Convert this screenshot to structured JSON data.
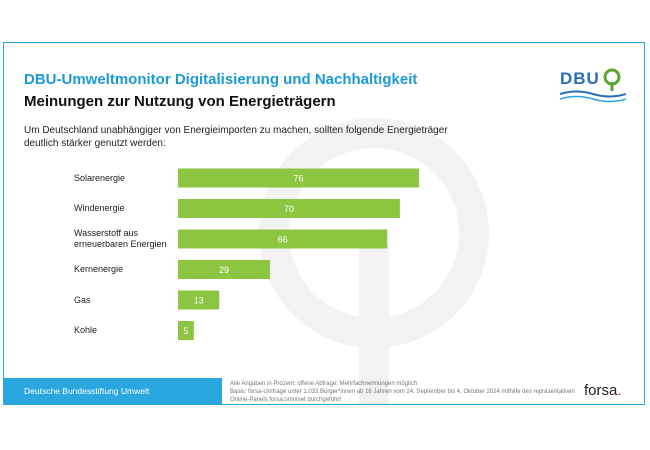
{
  "header": {
    "title": "DBU-Umweltmonitor Digitalisierung und Nachhaltigkeit",
    "subtitle": "Meinungen zur Nutzung von Energieträgern",
    "question": "Um Deutschland unabhängiger von Energieimporten zu machen, sollten folgende Energieträger deutlich stärker genutzt werden:"
  },
  "logo": {
    "text": "DBU",
    "name": "dbu-logo"
  },
  "footer": {
    "organization": "Deutsche Bundesstiftung Umwelt",
    "notes": [
      "Alle Angaben in Prozent; offene Abfrage; Mehrfachnennungen möglich",
      "Basis: forsa-Umfrage unter 1.033 Bürger*innen ab 18 Jahren vom 24. September bis 4. Oktober 2024 mithilfe des repräsentativen",
      "Online-Panels forsa.omninet durchgeführt"
    ],
    "brand": "forsa",
    "brand_dot": "."
  },
  "colors": {
    "accent": "#1b9ad6",
    "bar": "#8cc640",
    "frame": "#2aa7df"
  },
  "chart_data": {
    "type": "bar",
    "orientation": "horizontal",
    "unit": "Prozent",
    "xlim": [
      0,
      100
    ],
    "categories": [
      "Solarenergie",
      "Windenergie",
      "Wasserstoff aus erneuerbaren Energien",
      "Kernenergie",
      "Gas",
      "Kohle"
    ],
    "category_lines": [
      [
        "Solarenergie"
      ],
      [
        "Windenergie"
      ],
      [
        "Wasserstoff aus",
        "erneuerbaren Energien"
      ],
      [
        "Kernenergie"
      ],
      [
        "Gas"
      ],
      [
        "Kohle"
      ]
    ],
    "values": [
      76,
      70,
      66,
      29,
      13,
      5
    ]
  }
}
